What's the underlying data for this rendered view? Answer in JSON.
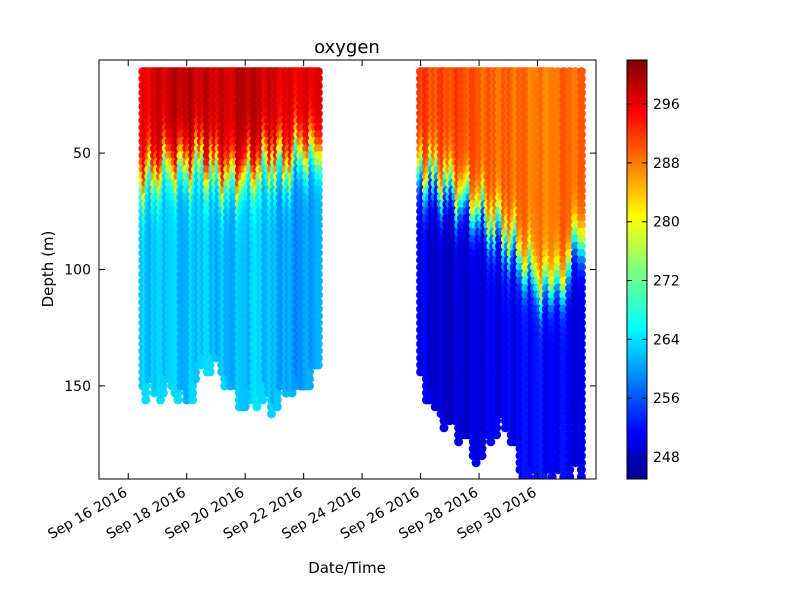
{
  "chart_data": {
    "type": "scatter",
    "title": "oxygen",
    "xlabel": "Date/Time",
    "ylabel": "Depth (m)",
    "x_range": [
      "2016-09-15",
      "2016-10-02"
    ],
    "y_range": [
      190,
      10
    ],
    "y_inverted": true,
    "y_ticks": [
      50,
      100,
      150
    ],
    "x_ticks": [
      "2016-09-16",
      "2016-09-18",
      "2016-09-20",
      "2016-09-22",
      "2016-09-24",
      "2016-09-26",
      "2016-09-28",
      "2016-09-30"
    ],
    "x_tick_labels": [
      "Sep 16 2016",
      "Sep 18 2016",
      "Sep 20 2016",
      "Sep 22 2016",
      "Sep 24 2016",
      "Sep 26 2016",
      "Sep 28 2016",
      "Sep 30 2016"
    ],
    "colorbar": {
      "colormap": "jet",
      "range": [
        245,
        302
      ],
      "ticks": [
        248,
        256,
        264,
        272,
        280,
        288,
        296
      ]
    },
    "grid": false,
    "profiles": [
      {
        "date": "2016-09-16 12:00",
        "max_depth": 151,
        "surface": 295,
        "thermocline": 62,
        "deep": 263
      },
      {
        "date": "2016-09-17 00:00",
        "max_depth": 152,
        "surface": 297,
        "thermocline": 58,
        "deep": 263
      },
      {
        "date": "2016-09-17 12:00",
        "max_depth": 150,
        "surface": 298,
        "thermocline": 55,
        "deep": 264
      },
      {
        "date": "2016-09-18 00:00",
        "max_depth": 158,
        "surface": 299,
        "thermocline": 57,
        "deep": 262
      },
      {
        "date": "2016-09-18 12:00",
        "max_depth": 142,
        "surface": 298,
        "thermocline": 54,
        "deep": 264
      },
      {
        "date": "2016-09-19 00:00",
        "max_depth": 140,
        "surface": 298,
        "thermocline": 59,
        "deep": 263
      },
      {
        "date": "2016-09-19 12:00",
        "max_depth": 150,
        "surface": 297,
        "thermocline": 62,
        "deep": 262
      },
      {
        "date": "2016-09-20 00:00",
        "max_depth": 160,
        "surface": 299,
        "thermocline": 60,
        "deep": 263
      },
      {
        "date": "2016-09-20 12:00",
        "max_depth": 153,
        "surface": 298,
        "thermocline": 56,
        "deep": 264
      },
      {
        "date": "2016-09-21 00:00",
        "max_depth": 157,
        "surface": 297,
        "thermocline": 52,
        "deep": 262
      },
      {
        "date": "2016-09-21 12:00",
        "max_depth": 150,
        "surface": 296,
        "thermocline": 55,
        "deep": 261
      },
      {
        "date": "2016-09-22 00:00",
        "max_depth": 150,
        "surface": 296,
        "thermocline": 48,
        "deep": 260
      },
      {
        "date": "2016-09-22 12:00",
        "max_depth": 143,
        "surface": 297,
        "thermocline": 52,
        "deep": 262
      },
      {
        "date": "2016-09-26 00:00",
        "max_depth": 146,
        "surface": 292,
        "thermocline": 58,
        "deep": 252
      },
      {
        "date": "2016-09-26 12:00",
        "max_depth": 160,
        "surface": 291,
        "thermocline": 63,
        "deep": 250
      },
      {
        "date": "2016-09-27 00:00",
        "max_depth": 167,
        "surface": 291,
        "thermocline": 66,
        "deep": 249
      },
      {
        "date": "2016-09-27 12:00",
        "max_depth": 172,
        "surface": 291,
        "thermocline": 70,
        "deep": 250
      },
      {
        "date": "2016-09-28 00:00",
        "max_depth": 182,
        "surface": 290,
        "thermocline": 74,
        "deep": 250
      },
      {
        "date": "2016-09-28 12:00",
        "max_depth": 168,
        "surface": 289,
        "thermocline": 80,
        "deep": 251
      },
      {
        "date": "2016-09-29 00:00",
        "max_depth": 165,
        "surface": 289,
        "thermocline": 85,
        "deep": 251
      },
      {
        "date": "2016-09-29 12:00",
        "max_depth": 190,
        "surface": 289,
        "thermocline": 95,
        "deep": 252
      },
      {
        "date": "2016-09-30 00:00",
        "max_depth": 190,
        "surface": 288,
        "thermocline": 105,
        "deep": 253
      },
      {
        "date": "2016-09-30 12:00",
        "max_depth": 190,
        "surface": 288,
        "thermocline": 110,
        "deep": 252
      },
      {
        "date": "2016-10-01 12:00",
        "max_depth": 190,
        "surface": 290,
        "thermocline": 90,
        "deep": 251
      }
    ]
  }
}
